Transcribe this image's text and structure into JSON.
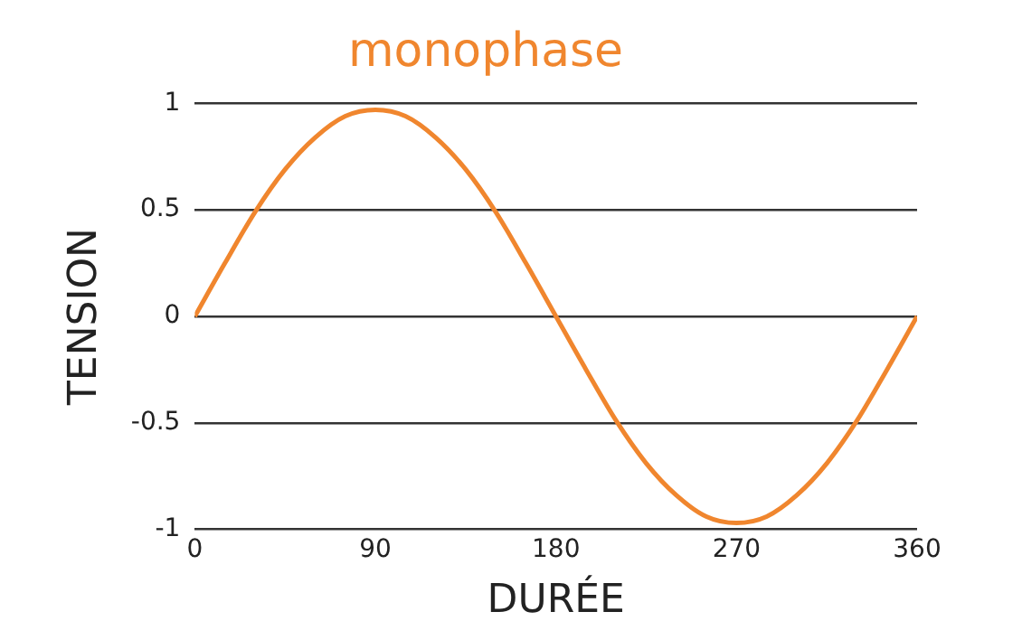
{
  "chart_data": {
    "type": "line",
    "title": "monophase",
    "xlabel": "DURÉE",
    "ylabel": "TENSION",
    "x": [
      0,
      15,
      30,
      45,
      60,
      75,
      90,
      105,
      120,
      135,
      150,
      165,
      180,
      195,
      210,
      225,
      240,
      255,
      270,
      285,
      300,
      315,
      330,
      345,
      360
    ],
    "series": [
      {
        "color": "#f0862e",
        "values": [
          0,
          0.25,
          0.49,
          0.69,
          0.84,
          0.94,
          0.97,
          0.94,
          0.84,
          0.69,
          0.49,
          0.25,
          0,
          -0.25,
          -0.49,
          -0.69,
          -0.84,
          -0.94,
          -0.97,
          -0.94,
          -0.84,
          -0.69,
          -0.49,
          -0.25,
          0
        ]
      }
    ],
    "xlim": [
      0,
      360
    ],
    "xticks": [
      0,
      90,
      180,
      270,
      360
    ],
    "ylim": [
      -1,
      1
    ],
    "yticks": [
      -1,
      -0.5,
      0,
      0.5,
      1
    ],
    "grid": "y",
    "legend": false,
    "marker": "none",
    "line_style": "solid"
  }
}
